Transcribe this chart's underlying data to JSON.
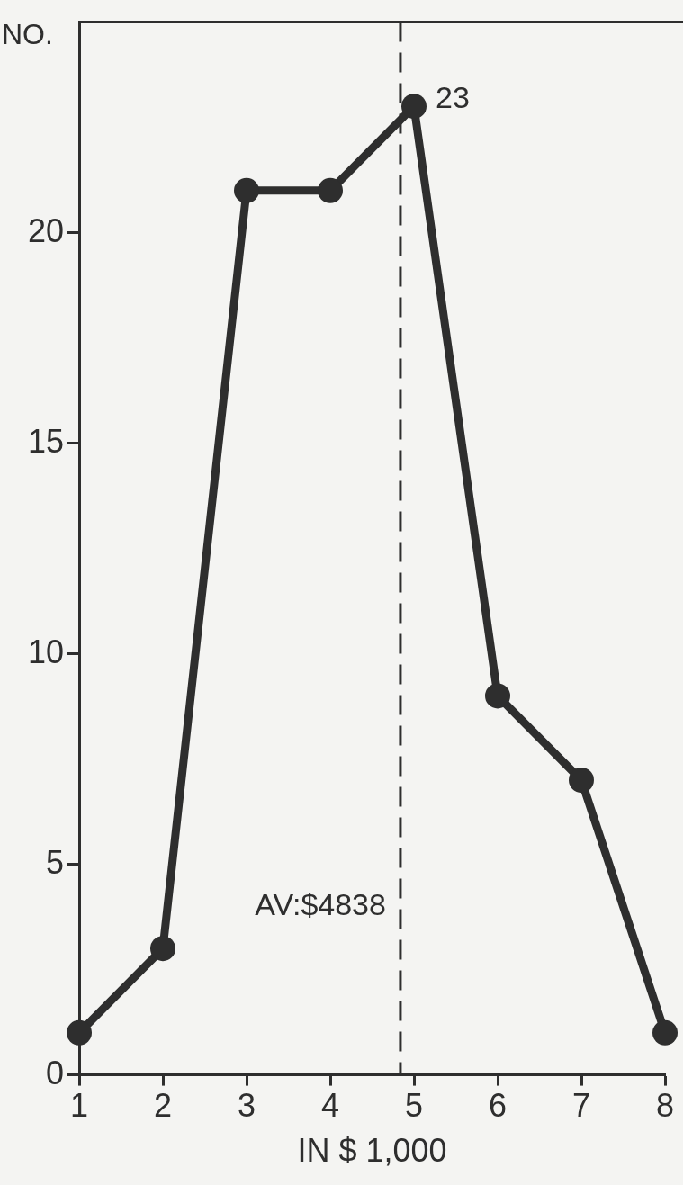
{
  "chart_data": {
    "type": "line",
    "ylabel": "NO.",
    "xlabel": "IN $ 1,000",
    "x": [
      1,
      2,
      3,
      4,
      5,
      6,
      7,
      8
    ],
    "series": [
      {
        "color": "#2e2e2e",
        "values": [
          1,
          3,
          21,
          21,
          23,
          9,
          7,
          1
        ],
        "value_labels": [
          null,
          null,
          null,
          null,
          "23",
          null,
          null,
          null
        ]
      }
    ],
    "xlim": [
      1,
      8
    ],
    "xticks": [
      1,
      2,
      3,
      4,
      5,
      6,
      7,
      8
    ],
    "ylim": [
      0,
      25
    ],
    "yticks": [
      0,
      5,
      10,
      15,
      20
    ],
    "ref_lines": [
      {
        "axis": "x",
        "value": 4.838,
        "label": "AV:$4838",
        "line_style": "dashed",
        "color": "#2e2e2e"
      }
    ],
    "marker": "circle",
    "line_style": "solid",
    "grid": false,
    "legend": false
  }
}
